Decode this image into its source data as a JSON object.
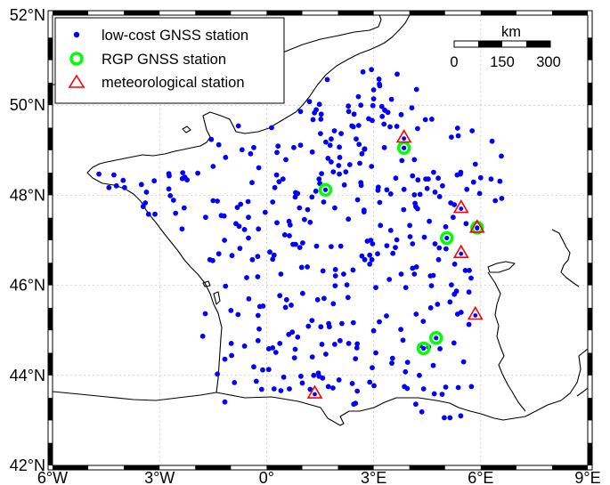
{
  "map": {
    "lon_range": [
      -6,
      9
    ],
    "lat_range": [
      42,
      52
    ],
    "lon_ticks": [
      {
        "value": -6,
        "label": "6°W"
      },
      {
        "value": -3,
        "label": "3°W"
      },
      {
        "value": 0,
        "label": "0°"
      },
      {
        "value": 3,
        "label": "3°E"
      },
      {
        "value": 6,
        "label": "6°E"
      },
      {
        "value": 9,
        "label": "9°E"
      }
    ],
    "lat_ticks": [
      {
        "value": 42,
        "label": "42°N"
      },
      {
        "value": 44,
        "label": "44°N"
      },
      {
        "value": 46,
        "label": "46°N"
      },
      {
        "value": 48,
        "label": "48°N"
      },
      {
        "value": 50,
        "label": "50°N"
      },
      {
        "value": 52,
        "label": "52°N"
      }
    ],
    "grid": true
  },
  "legend": {
    "placement": "top-left",
    "items": [
      {
        "label": "low-cost GNSS station",
        "marker": "dot",
        "color": "#0000ff"
      },
      {
        "label": "RGP GNSS station",
        "marker": "ring",
        "color": "#00ff00"
      },
      {
        "label": "meteorological station",
        "marker": "triangle",
        "color": "#ff0000"
      }
    ]
  },
  "scale_bar": {
    "unit": "km",
    "labels": [
      "0",
      "150",
      "300"
    ]
  },
  "rgp_stations": [
    [
      1.65,
      48.12
    ],
    [
      3.85,
      49.05
    ],
    [
      5.05,
      47.05
    ],
    [
      5.9,
      47.28
    ],
    [
      4.4,
      44.6
    ],
    [
      4.75,
      44.83
    ]
  ],
  "meteo_stations": [
    [
      3.85,
      49.28
    ],
    [
      5.45,
      47.72
    ],
    [
      5.9,
      47.28
    ],
    [
      5.45,
      46.72
    ],
    [
      5.85,
      45.35
    ],
    [
      1.35,
      43.6
    ]
  ],
  "low_cost_stations": [
    [
      1.66,
      44.47
    ],
    [
      2.03,
      43.9
    ],
    [
      -4.7,
      48.47
    ],
    [
      2.97,
      46.92
    ],
    [
      -2.74,
      48.14
    ],
    [
      -1.79,
      44.87
    ],
    [
      1.61,
      45.71
    ],
    [
      5.52,
      44.3
    ],
    [
      -0.69,
      49.01
    ],
    [
      1.54,
      48.48
    ],
    [
      0.95,
      49.86
    ],
    [
      2.94,
      50.79
    ],
    [
      -0.04,
      47.62
    ],
    [
      2.49,
      43.38
    ],
    [
      3.66,
      50.69
    ],
    [
      -1.72,
      45.37
    ],
    [
      1.55,
      44.69
    ],
    [
      0.37,
      45.77
    ],
    [
      0.17,
      47.85
    ],
    [
      5.14,
      43.06
    ],
    [
      0.26,
      44.51
    ],
    [
      -0.24,
      45.33
    ],
    [
      2.29,
      47.47
    ],
    [
      1.0,
      43.83
    ],
    [
      2.06,
      44.77
    ],
    [
      -0.4,
      46.57
    ],
    [
      2.96,
      49.66
    ],
    [
      -1.59,
      46.57
    ],
    [
      -1.55,
      49.24
    ],
    [
      3.9,
      45.95
    ],
    [
      -3.15,
      48.32
    ],
    [
      4.54,
      44.63
    ],
    [
      -1.15,
      48.84
    ],
    [
      -0.19,
      45.53
    ],
    [
      4.09,
      48.43
    ],
    [
      0.76,
      49.06
    ],
    [
      -0.62,
      47.24
    ],
    [
      3.06,
      44.5
    ],
    [
      3.12,
      48.11
    ],
    [
      -0.29,
      43.87
    ],
    [
      3.16,
      50.47
    ],
    [
      2.89,
      43.85
    ],
    [
      4.16,
      47.82
    ],
    [
      2.58,
      49.55
    ],
    [
      2.16,
      46.25
    ],
    [
      1.87,
      45.59
    ],
    [
      3.0,
      50.34
    ],
    [
      4.67,
      44.22
    ],
    [
      1.86,
      43.72
    ],
    [
      3.48,
      47.22
    ],
    [
      3.44,
      46.13
    ],
    [
      3.94,
      43.71
    ],
    [
      4.07,
      49.94
    ],
    [
      -2.36,
      48.37
    ],
    [
      1.87,
      48.52
    ],
    [
      -0.99,
      44.71
    ],
    [
      1.22,
      43.69
    ],
    [
      0.87,
      44.85
    ],
    [
      1.91,
      44.69
    ],
    [
      1.2,
      50.08
    ],
    [
      5.67,
      45.85
    ],
    [
      3.19,
      47.33
    ],
    [
      5.27,
      46.47
    ],
    [
      3.23,
      49.97
    ],
    [
      4.2,
      50.35
    ],
    [
      1.81,
      48.74
    ],
    [
      0.37,
      44.71
    ],
    [
      2.61,
      48.71
    ],
    [
      -0.14,
      43.69
    ],
    [
      2.7,
      50.74
    ],
    [
      0.4,
      46.25
    ],
    [
      3.06,
      45.95
    ],
    [
      -3.13,
      47.58
    ],
    [
      4.3,
      44.66
    ],
    [
      0.74,
      46.91
    ],
    [
      -3.37,
      48.07
    ],
    [
      2.49,
      44.37
    ],
    [
      5.35,
      45.36
    ],
    [
      5.68,
      46.33
    ],
    [
      0.81,
      48.06
    ],
    [
      -0.75,
      46.82
    ],
    [
      4.09,
      46.92
    ],
    [
      2.73,
      47.67
    ],
    [
      -2.31,
      47.72
    ],
    [
      5.16,
      47.83
    ],
    [
      2.43,
      49.52
    ],
    [
      6.58,
      48.87
    ],
    [
      3.77,
      46.25
    ],
    [
      1.51,
      49.37
    ],
    [
      2.89,
      46.47
    ],
    [
      1.93,
      46.21
    ],
    [
      5.25,
      44.72
    ],
    [
      2.96,
      44.17
    ],
    [
      5.74,
      43.75
    ],
    [
      2.65,
      48.22
    ],
    [
      5.97,
      48.04
    ],
    [
      1.38,
      48.09
    ],
    [
      -1.71,
      47.51
    ],
    [
      2.11,
      45.15
    ],
    [
      4.5,
      48.15
    ],
    [
      4.59,
      46.21
    ],
    [
      4.84,
      46.83
    ],
    [
      0.8,
      44.58
    ],
    [
      6.32,
      49.2
    ],
    [
      1.49,
      48.26
    ],
    [
      0.87,
      48.04
    ],
    [
      4.14,
      48.01
    ],
    [
      2.09,
      49.37
    ],
    [
      -0.82,
      47.73
    ],
    [
      1.91,
      47.72
    ],
    [
      0.93,
      46.84
    ],
    [
      2.57,
      50.19
    ],
    [
      -1.5,
      47.88
    ],
    [
      3.53,
      44.38
    ],
    [
      2.02,
      48.66
    ],
    [
      -2.73,
      48.43
    ],
    [
      3.0,
      50.14
    ],
    [
      2.94,
      48.64
    ],
    [
      5.23,
      47.51
    ],
    [
      0.54,
      48.79
    ],
    [
      5.44,
      43.1
    ],
    [
      3.89,
      44.08
    ],
    [
      2.82,
      46.98
    ],
    [
      5.67,
      45.13
    ],
    [
      1.22,
      47.4
    ],
    [
      -3.51,
      48.24
    ],
    [
      -0.23,
      47.25
    ],
    [
      -1.17,
      44.36
    ],
    [
      4.35,
      43.19
    ],
    [
      4.72,
      48.07
    ],
    [
      1.27,
      45.22
    ],
    [
      -0.22,
      48.61
    ],
    [
      -0.8,
      45.35
    ],
    [
      4.62,
      45.99
    ],
    [
      2.53,
      44.61
    ],
    [
      3.0,
      44.99
    ],
    [
      -1.15,
      45.98
    ],
    [
      2.89,
      46.67
    ],
    [
      0.98,
      46.4
    ],
    [
      4.6,
      45.5
    ],
    [
      1.7,
      50.57
    ],
    [
      0.23,
      48.17
    ],
    [
      5.57,
      46.33
    ],
    [
      -4.02,
      48.33
    ],
    [
      0.64,
      43.7
    ],
    [
      1.52,
      45.08
    ],
    [
      3.65,
      47.01
    ],
    [
      -0.79,
      49.54
    ],
    [
      -2.29,
      48.4
    ],
    [
      0.17,
      44.61
    ],
    [
      3.46,
      49.52
    ],
    [
      2.22,
      48.52
    ],
    [
      5.35,
      49.49
    ],
    [
      4.98,
      43.06
    ],
    [
      3.65,
      49.53
    ],
    [
      4.93,
      48.21
    ],
    [
      -0.1,
      45.54
    ],
    [
      0.09,
      46.74
    ],
    [
      3.16,
      45.19
    ],
    [
      2.95,
      46.57
    ],
    [
      4.72,
      46.92
    ],
    [
      2.54,
      43.65
    ],
    [
      2.67,
      48.92
    ],
    [
      4.23,
      49.48
    ],
    [
      2.4,
      43.82
    ],
    [
      0.32,
      49.09
    ],
    [
      -2.55,
      47.6
    ],
    [
      1.27,
      47.96
    ],
    [
      2.3,
      49.86
    ],
    [
      1.3,
      49.68
    ],
    [
      3.48,
      48.03
    ],
    [
      4.53,
      48.36
    ],
    [
      1.66,
      49.18
    ],
    [
      1.52,
      49.69
    ],
    [
      3.79,
      48.77
    ],
    [
      -3.46,
      47.75
    ],
    [
      1.28,
      48.96
    ],
    [
      1.17,
      45.09
    ],
    [
      0.66,
      47.34
    ],
    [
      2.86,
      49.7
    ],
    [
      2.25,
      46.01
    ],
    [
      6.41,
      47.88
    ],
    [
      3.13,
      48.18
    ],
    [
      0.51,
      47.12
    ],
    [
      4.14,
      46.25
    ],
    [
      -0.24,
      44.77
    ],
    [
      1.58,
      46.32
    ],
    [
      1.93,
      46.35
    ],
    [
      -1.34,
      46.7
    ],
    [
      1.72,
      48.82
    ],
    [
      0.64,
      47.1
    ],
    [
      5.8,
      48.29
    ],
    [
      6.59,
      47.93
    ],
    [
      1.78,
      49.11
    ],
    [
      -0.56,
      46.17
    ],
    [
      3.17,
      50.43
    ],
    [
      -1.51,
      46.55
    ],
    [
      1.73,
      43.75
    ],
    [
      0.29,
      47.39
    ],
    [
      5.32,
      45.87
    ],
    [
      0.8,
      47.96
    ],
    [
      1.48,
      50.02
    ],
    [
      3.82,
      44.78
    ],
    [
      -4.21,
      48.21
    ],
    [
      0.35,
      48.3
    ],
    [
      -0.36,
      44.19
    ],
    [
      1.14,
      46.41
    ],
    [
      3.77,
      49.79
    ],
    [
      1.39,
      49.9
    ],
    [
      0.48,
      43.96
    ],
    [
      2.28,
      45.73
    ],
    [
      2.08,
      46.87
    ],
    [
      -0.11,
      44.12
    ],
    [
      3.17,
      47.84
    ],
    [
      -1.34,
      49.12
    ],
    [
      4.4,
      43.7
    ],
    [
      -0.9,
      43.84
    ],
    [
      -0.86,
      47.37
    ],
    [
      1.32,
      44.0
    ],
    [
      2.75,
      49.03
    ],
    [
      0.72,
      44.96
    ],
    [
      2.55,
      47.9
    ],
    [
      2.45,
      49.8
    ],
    [
      -2.74,
      48.48
    ],
    [
      0.69,
      45.56
    ],
    [
      0.78,
      44.39
    ],
    [
      5.26,
      45.8
    ],
    [
      1.01,
      46.94
    ],
    [
      4.24,
      48.34
    ],
    [
      6.54,
      48.31
    ],
    [
      0.4,
      43.66
    ],
    [
      1.92,
      45.99
    ],
    [
      3.01,
      43.77
    ],
    [
      2.04,
      48.47
    ],
    [
      -1.5,
      48.64
    ],
    [
      3.3,
      49.06
    ],
    [
      4.2,
      46.41
    ],
    [
      2.33,
      48.68
    ],
    [
      4.19,
      45.36
    ],
    [
      2.98,
      49.99
    ],
    [
      5.44,
      48.51
    ],
    [
      4.18,
      47.75
    ],
    [
      5.03,
      46.81
    ],
    [
      1.76,
      45.08
    ],
    [
      3.4,
      49.84
    ],
    [
      4.92,
      43.58
    ],
    [
      5.18,
      46.01
    ],
    [
      1.34,
      49.83
    ],
    [
      3.11,
      46.7
    ],
    [
      -0.45,
      48.92
    ],
    [
      2.54,
      44.7
    ],
    [
      4.67,
      46.22
    ],
    [
      3.85,
      48.13
    ],
    [
      5.37,
      49.32
    ],
    [
      -0.51,
      47.05
    ],
    [
      4.09,
      46.38
    ],
    [
      1.43,
      45.68
    ],
    [
      -4.42,
      48.17
    ],
    [
      1.57,
      43.94
    ],
    [
      1.15,
      47.68
    ],
    [
      5.76,
      49.43
    ],
    [
      -1.19,
      47.54
    ],
    [
      2.64,
      50.0
    ],
    [
      4.82,
      46.57
    ],
    [
      0.29,
      48.95
    ],
    [
      -0.98,
      44.44
    ],
    [
      1.28,
      44.41
    ],
    [
      2.3,
      44.71
    ],
    [
      -1.38,
      44.03
    ],
    [
      0.21,
      43.7
    ],
    [
      -1.38,
      47.87
    ],
    [
      2.39,
      49.54
    ],
    [
      -1.0,
      45.44
    ],
    [
      4.42,
      47.07
    ],
    [
      -2.35,
      48.5
    ],
    [
      2.05,
      48.84
    ],
    [
      5.37,
      43.73
    ],
    [
      1.6,
      47.85
    ],
    [
      1.81,
      46.86
    ],
    [
      4.46,
      48.36
    ],
    [
      0.81,
      46.91
    ],
    [
      2.42,
      46.34
    ],
    [
      -1.93,
      48.49
    ],
    [
      4.23,
      47.7
    ],
    [
      3.76,
      45.02
    ],
    [
      -3.4,
      47.83
    ],
    [
      4.3,
      48.02
    ],
    [
      5.43,
      48.47
    ],
    [
      -2.61,
      47.89
    ],
    [
      0.28,
      48.45
    ],
    [
      6.0,
      48.39
    ],
    [
      0.53,
      45.51
    ],
    [
      2.51,
      49.25
    ],
    [
      3.86,
      43.75
    ],
    [
      -0.62,
      44.65
    ],
    [
      4.81,
      48.38
    ],
    [
      3.61,
      46.84
    ],
    [
      2.44,
      43.36
    ],
    [
      3.5,
      50.13
    ],
    [
      0.21,
      46.67
    ],
    [
      1.4,
      46.87
    ],
    [
      3.54,
      46.71
    ],
    [
      -0.25,
      46.19
    ],
    [
      5.73,
      46.16
    ],
    [
      5.02,
      47.3
    ],
    [
      0.06,
      44.59
    ],
    [
      5.61,
      48.13
    ],
    [
      3.15,
      50.58
    ],
    [
      5.26,
      47.79
    ],
    [
      -0.25,
      46.64
    ],
    [
      3.37,
      48.12
    ],
    [
      2.64,
      48.28
    ],
    [
      4.7,
      43.59
    ],
    [
      1.81,
      49.25
    ],
    [
      -3.98,
      48.17
    ],
    [
      3.37,
      46.88
    ],
    [
      3.29,
      49.58
    ],
    [
      -2.37,
      47.25
    ],
    [
      0.92,
      47.72
    ],
    [
      4.18,
      43.36
    ],
    [
      -3.31,
      47.58
    ],
    [
      2.92,
      47.0
    ],
    [
      4.45,
      49.68
    ],
    [
      -1.18,
      47.0
    ],
    [
      -0.21,
      45.03
    ],
    [
      -0.5,
      45.7
    ],
    [
      1.47,
      43.98
    ],
    [
      6.29,
      48.36
    ],
    [
      1.9,
      49.43
    ],
    [
      -0.73,
      47.8
    ],
    [
      -1.17,
      43.41
    ],
    [
      2.43,
      45.17
    ],
    [
      4.01,
      47.33
    ],
    [
      2.04,
      49.07
    ],
    [
      0.17,
      46.58
    ],
    [
      -0.51,
      47.51
    ],
    [
      4.14,
      48.79
    ],
    [
      2.59,
      49.13
    ],
    [
      2.67,
      46.65
    ],
    [
      1.74,
      45.15
    ],
    [
      -0.97,
      46.66
    ],
    [
      3.84,
      47.68
    ],
    [
      4.28,
      44.0
    ],
    [
      1.53,
      49.8
    ],
    [
      -0.41,
      48.28
    ],
    [
      2.75,
      46.57
    ],
    [
      4.39,
      45.2
    ],
    [
      -2.7,
      47.99
    ],
    [
      2.73,
      47.63
    ],
    [
      2.18,
      48.23
    ],
    [
      0.62,
      44.91
    ],
    [
      -0.36,
      49.06
    ],
    [
      0.63,
      47.42
    ],
    [
      5.18,
      49.29
    ],
    [
      2.29,
      49.98
    ],
    [
      1.01,
      45.82
    ],
    [
      0.14,
      49.5
    ],
    [
      1.06,
      47.46
    ],
    [
      3.36,
      45.32
    ],
    [
      5.45,
      45.4
    ],
    [
      5.14,
      45.63
    ],
    [
      3.51,
      44.27
    ],
    [
      0.46,
      48.36
    ],
    [
      4.68,
      48.51
    ],
    [
      5.85,
      48.69
    ],
    [
      3.24,
      49.75
    ],
    [
      5.59,
      47.37
    ],
    [
      0.95,
      49.11
    ],
    [
      1.47,
      48.36
    ],
    [
      4.85,
      47.97
    ],
    [
      1.45,
      44.05
    ],
    [
      2.74,
      49.02
    ],
    [
      4.63,
      49.69
    ],
    [
      0.96,
      43.98
    ],
    [
      5.02,
      43.74
    ],
    [
      4.79,
      45.58
    ],
    [
      3.31,
      49.89
    ],
    [
      4.56,
      47.42
    ],
    [
      0.56,
      45.68
    ],
    [
      3.95,
      44.29
    ],
    [
      0.06,
      44.13
    ],
    [
      -1.27,
      47.55
    ],
    [
      -0.52,
      47.86
    ],
    [
      -4.28,
      48.45
    ],
    [
      -2.23,
      48.34
    ],
    [
      -0.77,
      47.31
    ],
    [
      4.02,
      47.08
    ],
    [
      5.34,
      48.45
    ],
    [
      3.62,
      48.38
    ],
    [
      4.86,
      44.59
    ]
  ]
}
